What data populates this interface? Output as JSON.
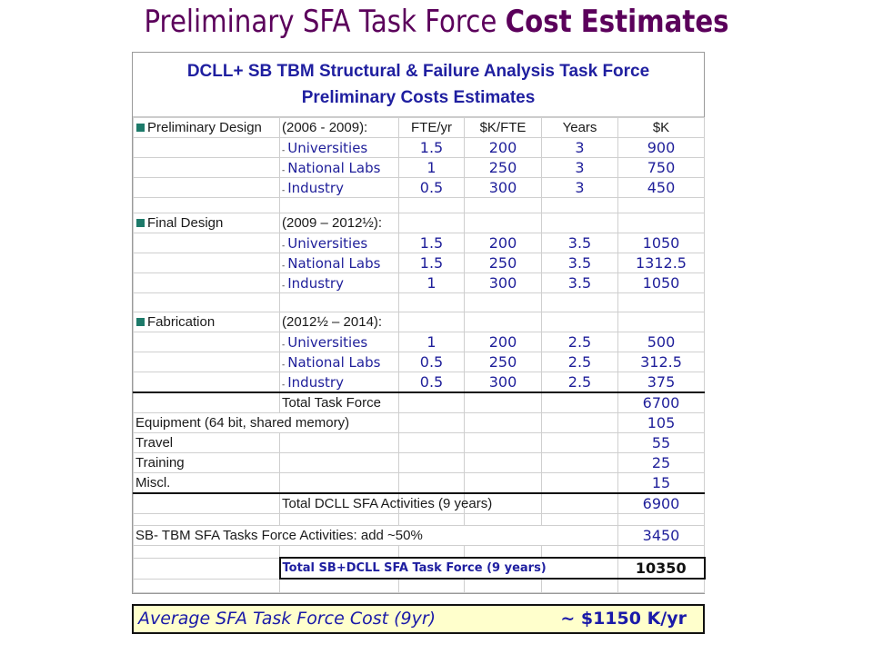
{
  "slide": {
    "title_regular": "Preliminary  SFA Task Force ",
    "title_bold": "Cost Estimates"
  },
  "sheet": {
    "title_line1": "DCLL+ SB TBM Structural & Failure Analysis Task Force",
    "title_line2": "Preliminary Costs Estimates",
    "header": {
      "phase": "Preliminary Design",
      "period": "(2006 - 2009):",
      "col_fte": "FTE/yr",
      "col_kfte": "$K/FTE",
      "col_years": "Years",
      "col_k": "$K"
    },
    "preliminary_rows": [
      {
        "name": "Universities",
        "fte": "1.5",
        "kfte": "200",
        "years": "3",
        "k": "900"
      },
      {
        "name": "National Labs",
        "fte": "1",
        "kfte": "250",
        "years": "3",
        "k": "750"
      },
      {
        "name": "Industry",
        "fte": "0.5",
        "kfte": "300",
        "years": "3",
        "k": "450"
      }
    ],
    "final_design": {
      "phase": "Final Design",
      "period": "(2009 – 2012½):"
    },
    "final_rows": [
      {
        "name": "Universities",
        "fte": "1.5",
        "kfte": "200",
        "years": "3.5",
        "k": "1050"
      },
      {
        "name": "National Labs",
        "fte": "1.5",
        "kfte": "250",
        "years": "3.5",
        "k": "1312.5"
      },
      {
        "name": "Industry",
        "fte": "1",
        "kfte": "300",
        "years": "3.5",
        "k": "1050"
      }
    ],
    "fabrication": {
      "phase": "Fabrication",
      "period": "(2012½ – 2014):"
    },
    "fabrication_rows": [
      {
        "name": "Universities",
        "fte": "1",
        "kfte": "200",
        "years": "2.5",
        "k": "500"
      },
      {
        "name": "National Labs",
        "fte": "0.5",
        "kfte": "250",
        "years": "2.5",
        "k": "312.5"
      },
      {
        "name": "Industry",
        "fte": "0.5",
        "kfte": "300",
        "years": "2.5",
        "k": "375"
      }
    ],
    "total_task_force": {
      "label": "Total Task Force",
      "k": "6700"
    },
    "equipment": {
      "label": "Equipment (64 bit, shared memory)",
      "k": "105"
    },
    "travel": {
      "label": "Travel",
      "k": "55"
    },
    "training": {
      "label": "Training",
      "k": "25"
    },
    "miscl": {
      "label": "Miscl.",
      "k": "15"
    },
    "total_dcll": {
      "label": "Total DCLL SFA Activities (9 years)",
      "k": "6900"
    },
    "sb_tbm": {
      "label": "SB- TBM SFA Tasks Force Activities: add ~50%",
      "k": "3450"
    },
    "grand_total": {
      "label": "Total SB+DCLL SFA Task Force (9 years)",
      "k": "10350"
    }
  },
  "average": {
    "label": "Average  SFA Task Force Cost (9yr)",
    "value": "~ $1150 K/yr"
  }
}
